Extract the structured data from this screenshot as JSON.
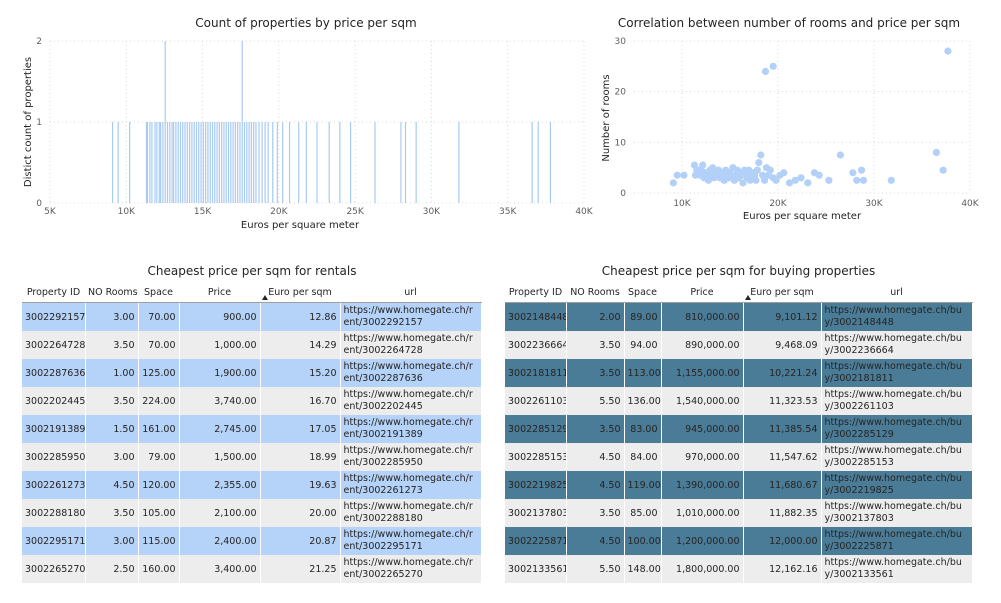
{
  "colors": {
    "bar": "#a8cbf5",
    "point": "#b3d1f8",
    "rent_odd_row": "#b5d2f8",
    "buy_odd_row": "#4b7c97",
    "even_row": "#ededed"
  },
  "chart_data": [
    {
      "type": "bar",
      "title": "Count of properties by price per sqm",
      "xlabel": "Euros per square meter",
      "ylabel": "Distict count of properties",
      "xlim": [
        5000,
        40000
      ],
      "ylim": [
        0,
        2
      ],
      "xticks": [
        5000,
        10000,
        15000,
        20000,
        25000,
        30000,
        35000,
        40000
      ],
      "xtick_labels": [
        "5K",
        "10K",
        "15K",
        "20K",
        "25K",
        "30K",
        "35K",
        "40K"
      ],
      "yticks": [
        0,
        1,
        2
      ],
      "ytick_labels": [
        "0",
        "1",
        "2"
      ],
      "grid": true,
      "x": [
        9101,
        9468,
        10221,
        11323,
        11385,
        11547,
        11680,
        11882,
        12000,
        12162,
        12250,
        12400,
        12550,
        12700,
        12850,
        13000,
        13100,
        13250,
        13400,
        13550,
        13700,
        13850,
        14000,
        14150,
        14300,
        14450,
        14600,
        14750,
        14900,
        15050,
        15200,
        15350,
        15500,
        15650,
        15800,
        15950,
        16100,
        16250,
        16400,
        16550,
        16700,
        16850,
        17000,
        17150,
        17300,
        17450,
        17600,
        17750,
        17900,
        18050,
        18200,
        18350,
        18500,
        18700,
        18900,
        19100,
        19300,
        19600,
        19900,
        20250,
        20700,
        21300,
        21800,
        22500,
        23300,
        24000,
        24700,
        26300,
        28000,
        28300,
        29000,
        31800,
        36600,
        37000,
        37800
      ],
      "values": [
        1,
        1,
        1,
        1,
        1,
        1,
        1,
        1,
        1,
        1,
        1,
        1,
        2,
        1,
        1,
        1,
        1,
        1,
        1,
        1,
        1,
        1,
        1,
        1,
        1,
        1,
        1,
        1,
        1,
        1,
        1,
        1,
        1,
        1,
        1,
        1,
        1,
        1,
        1,
        1,
        1,
        1,
        1,
        1,
        1,
        1,
        2,
        1,
        1,
        1,
        1,
        1,
        1,
        1,
        1,
        1,
        1,
        1,
        1,
        1,
        1,
        1,
        1,
        1,
        1,
        1,
        1,
        1,
        1,
        1,
        1,
        1,
        1,
        1,
        1
      ]
    },
    {
      "type": "scatter",
      "title": "Correlation between number of rooms and price per sqm",
      "xlabel": "Euros per square meter",
      "ylabel": "Number of rooms",
      "xlim": [
        5000,
        40000
      ],
      "ylim": [
        0,
        30
      ],
      "xticks": [
        10000,
        20000,
        30000,
        40000
      ],
      "xtick_labels": [
        "10K",
        "20K",
        "30K",
        "40K"
      ],
      "yticks": [
        0,
        10,
        20,
        30
      ],
      "ytick_labels": [
        "0",
        "10",
        "20",
        "30"
      ],
      "grid": true,
      "points": [
        [
          9100,
          2.0
        ],
        [
          9500,
          3.5
        ],
        [
          10200,
          3.5
        ],
        [
          11300,
          5.5
        ],
        [
          11400,
          3.5
        ],
        [
          11550,
          4.5
        ],
        [
          11700,
          4.5
        ],
        [
          11900,
          3.5
        ],
        [
          12000,
          4.5
        ],
        [
          12150,
          5.5
        ],
        [
          12300,
          3.0
        ],
        [
          12450,
          4.0
        ],
        [
          12600,
          3.5
        ],
        [
          12750,
          2.5
        ],
        [
          12900,
          4.5
        ],
        [
          13050,
          3.5
        ],
        [
          13200,
          5.0
        ],
        [
          13350,
          3.0
        ],
        [
          13500,
          4.0
        ],
        [
          13650,
          3.5
        ],
        [
          13800,
          4.5
        ],
        [
          13950,
          3.0
        ],
        [
          14100,
          4.0
        ],
        [
          14250,
          3.5
        ],
        [
          14400,
          2.5
        ],
        [
          14550,
          4.5
        ],
        [
          14700,
          3.5
        ],
        [
          14850,
          3.0
        ],
        [
          15000,
          4.0
        ],
        [
          15150,
          3.5
        ],
        [
          15300,
          5.0
        ],
        [
          15450,
          2.5
        ],
        [
          15600,
          3.5
        ],
        [
          15750,
          4.5
        ],
        [
          15900,
          3.0
        ],
        [
          16050,
          4.0
        ],
        [
          16200,
          3.5
        ],
        [
          16350,
          2.0
        ],
        [
          16500,
          4.5
        ],
        [
          16650,
          3.5
        ],
        [
          16800,
          3.0
        ],
        [
          16950,
          4.5
        ],
        [
          17100,
          2.5
        ],
        [
          17250,
          3.5
        ],
        [
          17400,
          4.0
        ],
        [
          17550,
          3.5
        ],
        [
          17700,
          2.5
        ],
        [
          17850,
          4.5
        ],
        [
          18000,
          6.0
        ],
        [
          18200,
          7.5
        ],
        [
          18400,
          3.5
        ],
        [
          18600,
          2.5
        ],
        [
          18800,
          5.0
        ],
        [
          19000,
          3.5
        ],
        [
          19200,
          4.5
        ],
        [
          19500,
          3.0
        ],
        [
          19800,
          2.5
        ],
        [
          20200,
          3.5
        ],
        [
          20600,
          4.0
        ],
        [
          21200,
          2.0
        ],
        [
          21800,
          2.5
        ],
        [
          22400,
          3.0
        ],
        [
          23100,
          2.0
        ],
        [
          23800,
          4.0
        ],
        [
          24300,
          3.5
        ],
        [
          25300,
          2.5
        ],
        [
          26500,
          7.5
        ],
        [
          27800,
          4.0
        ],
        [
          28200,
          2.5
        ],
        [
          28700,
          4.5
        ],
        [
          28900,
          2.5
        ],
        [
          31800,
          2.5
        ],
        [
          36500,
          8.0
        ],
        [
          37200,
          4.5
        ],
        [
          18700,
          24.0
        ],
        [
          19500,
          25.0
        ],
        [
          37700,
          28.0
        ]
      ]
    }
  ],
  "rent_table": {
    "title": "Cheapest price per sqm for rentals",
    "columns": [
      "Property ID",
      "NO Rooms",
      "Space",
      "Price",
      "Euro per sqm",
      "url"
    ],
    "rows": [
      [
        "3002292157",
        "3.00",
        "70.00",
        "900.00",
        "12.86",
        "https://www.homegate.ch/rent/3002292157"
      ],
      [
        "3002264728",
        "3.50",
        "70.00",
        "1,000.00",
        "14.29",
        "https://www.homegate.ch/rent/3002264728"
      ],
      [
        "3002287636",
        "1.00",
        "125.00",
        "1,900.00",
        "15.20",
        "https://www.homegate.ch/rent/3002287636"
      ],
      [
        "3002202445",
        "3.50",
        "224.00",
        "3,740.00",
        "16.70",
        "https://www.homegate.ch/rent/3002202445"
      ],
      [
        "3002191389",
        "1.50",
        "161.00",
        "2,745.00",
        "17.05",
        "https://www.homegate.ch/rent/3002191389"
      ],
      [
        "3002285950",
        "3.00",
        "79.00",
        "1,500.00",
        "18.99",
        "https://www.homegate.ch/rent/3002285950"
      ],
      [
        "3002261273",
        "4.50",
        "120.00",
        "2,355.00",
        "19.63",
        "https://www.homegate.ch/rent/3002261273"
      ],
      [
        "3002288180",
        "3.50",
        "105.00",
        "2,100.00",
        "20.00",
        "https://www.homegate.ch/rent/3002288180"
      ],
      [
        "3002295171",
        "3.00",
        "115.00",
        "2,400.00",
        "20.87",
        "https://www.homegate.ch/rent/3002295171"
      ],
      [
        "3002265270",
        "2.50",
        "160.00",
        "3,400.00",
        "21.25",
        "https://www.homegate.ch/rent/3002265270"
      ]
    ]
  },
  "buy_table": {
    "title": "Cheapest price per sqm for buying properties",
    "columns": [
      "Property ID",
      "NO Rooms",
      "Space",
      "Price",
      "Euro per sqm",
      "url"
    ],
    "rows": [
      [
        "3002148448",
        "2.00",
        "89.00",
        "810,000.00",
        "9,101.12",
        "https://www.homegate.ch/buy/3002148448"
      ],
      [
        "3002236664",
        "3.50",
        "94.00",
        "890,000.00",
        "9,468.09",
        "https://www.homegate.ch/buy/3002236664"
      ],
      [
        "3002181811",
        "3.50",
        "113.00",
        "1,155,000.00",
        "10,221.24",
        "https://www.homegate.ch/buy/3002181811"
      ],
      [
        "3002261103",
        "5.50",
        "136.00",
        "1,540,000.00",
        "11,323.53",
        "https://www.homegate.ch/buy/3002261103"
      ],
      [
        "3002285129",
        "3.50",
        "83.00",
        "945,000.00",
        "11,385.54",
        "https://www.homegate.ch/buy/3002285129"
      ],
      [
        "3002285153",
        "4.50",
        "84.00",
        "970,000.00",
        "11,547.62",
        "https://www.homegate.ch/buy/3002285153"
      ],
      [
        "3002219825",
        "4.50",
        "119.00",
        "1,390,000.00",
        "11,680.67",
        "https://www.homegate.ch/buy/3002219825"
      ],
      [
        "3002137803",
        "3.50",
        "85.00",
        "1,010,000.00",
        "11,882.35",
        "https://www.homegate.ch/buy/3002137803"
      ],
      [
        "3002225871",
        "4.50",
        "100.00",
        "1,200,000.00",
        "12,000.00",
        "https://www.homegate.ch/buy/3002225871"
      ],
      [
        "3002133561",
        "5.50",
        "148.00",
        "1,800,000.00",
        "12,162.16",
        "https://www.homegate.ch/buy/3002133561"
      ]
    ]
  }
}
